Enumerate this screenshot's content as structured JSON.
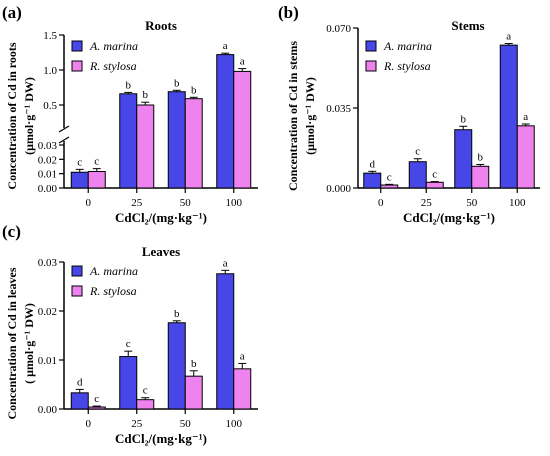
{
  "colors": {
    "A. marina": "#4747e8",
    "R. stylosa": "#ee82ee"
  },
  "chart_data": [
    {
      "type": "bar",
      "panel_label": "(a)",
      "title": "Roots",
      "ylabel_lines": [
        "Concentration of Cd in roots",
        "(μmol·g⁻¹ DW)"
      ],
      "xlabel": "CdCl₂/(mg·kg⁻¹)",
      "categories": [
        "0",
        "25",
        "50",
        "100"
      ],
      "series": [
        {
          "name": "A. marina",
          "values": [
            0.011,
            0.66,
            0.69,
            1.22
          ],
          "errors": [
            0.002,
            0.02,
            0.02,
            0.02
          ],
          "letters": [
            "c",
            "b",
            "b",
            "a"
          ]
        },
        {
          "name": "R. stylosa",
          "values": [
            0.0115,
            0.5,
            0.59,
            0.98
          ],
          "errors": [
            0.002,
            0.04,
            0.02,
            0.04
          ],
          "letters": [
            "c",
            "b",
            "b",
            "a"
          ]
        }
      ],
      "y_axis_break": true,
      "yticks_lower": [
        "0.00",
        "0.01",
        "0.02",
        "0.03"
      ],
      "yticks_upper": [
        "0.5",
        "1.0",
        "1.5"
      ],
      "legend": "top-left"
    },
    {
      "type": "bar",
      "panel_label": "(b)",
      "title": "Stems",
      "ylabel_lines": [
        "Concentration of Cd in stems",
        "(μmol·g⁻¹ DW)"
      ],
      "xlabel": "CdCl₂/(mg·kg⁻¹)",
      "categories": [
        "0",
        "25",
        "50",
        "100"
      ],
      "ylim": [
        0,
        0.07
      ],
      "yticks": [
        "0.000",
        "0.035",
        "0.070"
      ],
      "series": [
        {
          "name": "A. marina",
          "values": [
            0.0065,
            0.0115,
            0.0255,
            0.0625
          ],
          "errors": [
            0.0008,
            0.0013,
            0.0015,
            0.0007
          ],
          "letters": [
            "d",
            "c",
            "b",
            "a"
          ]
        },
        {
          "name": "R. stylosa",
          "values": [
            0.0013,
            0.0025,
            0.0095,
            0.0272
          ],
          "errors": [
            0.0003,
            0.0003,
            0.0008,
            0.0008
          ],
          "letters": [
            "c",
            "c",
            "b",
            "a"
          ]
        }
      ],
      "legend": "top-left"
    },
    {
      "type": "bar",
      "panel_label": "(c)",
      "title": "Leaves",
      "ylabel_lines": [
        "Concentration of Cd in leaves",
        "( μmol·g⁻¹ DW)"
      ],
      "xlabel": "CdCl₂/(mg·kg⁻¹)",
      "categories": [
        "0",
        "25",
        "50",
        "100"
      ],
      "ylim": [
        0,
        0.03
      ],
      "yticks": [
        "0.00",
        "0.01",
        "0.02",
        "0.03"
      ],
      "series": [
        {
          "name": "A. marina",
          "values": [
            0.0033,
            0.0107,
            0.0176,
            0.0276
          ],
          "errors": [
            0.0007,
            0.0011,
            0.0004,
            0.0007
          ],
          "letters": [
            "d",
            "c",
            "b",
            "a"
          ]
        },
        {
          "name": "R. stylosa",
          "values": [
            0.0004,
            0.0019,
            0.0067,
            0.0082
          ],
          "errors": [
            0.0002,
            0.0004,
            0.0011,
            0.0011
          ],
          "letters": [
            "c",
            "c",
            "b",
            "a"
          ]
        }
      ],
      "legend": "top-left"
    }
  ]
}
